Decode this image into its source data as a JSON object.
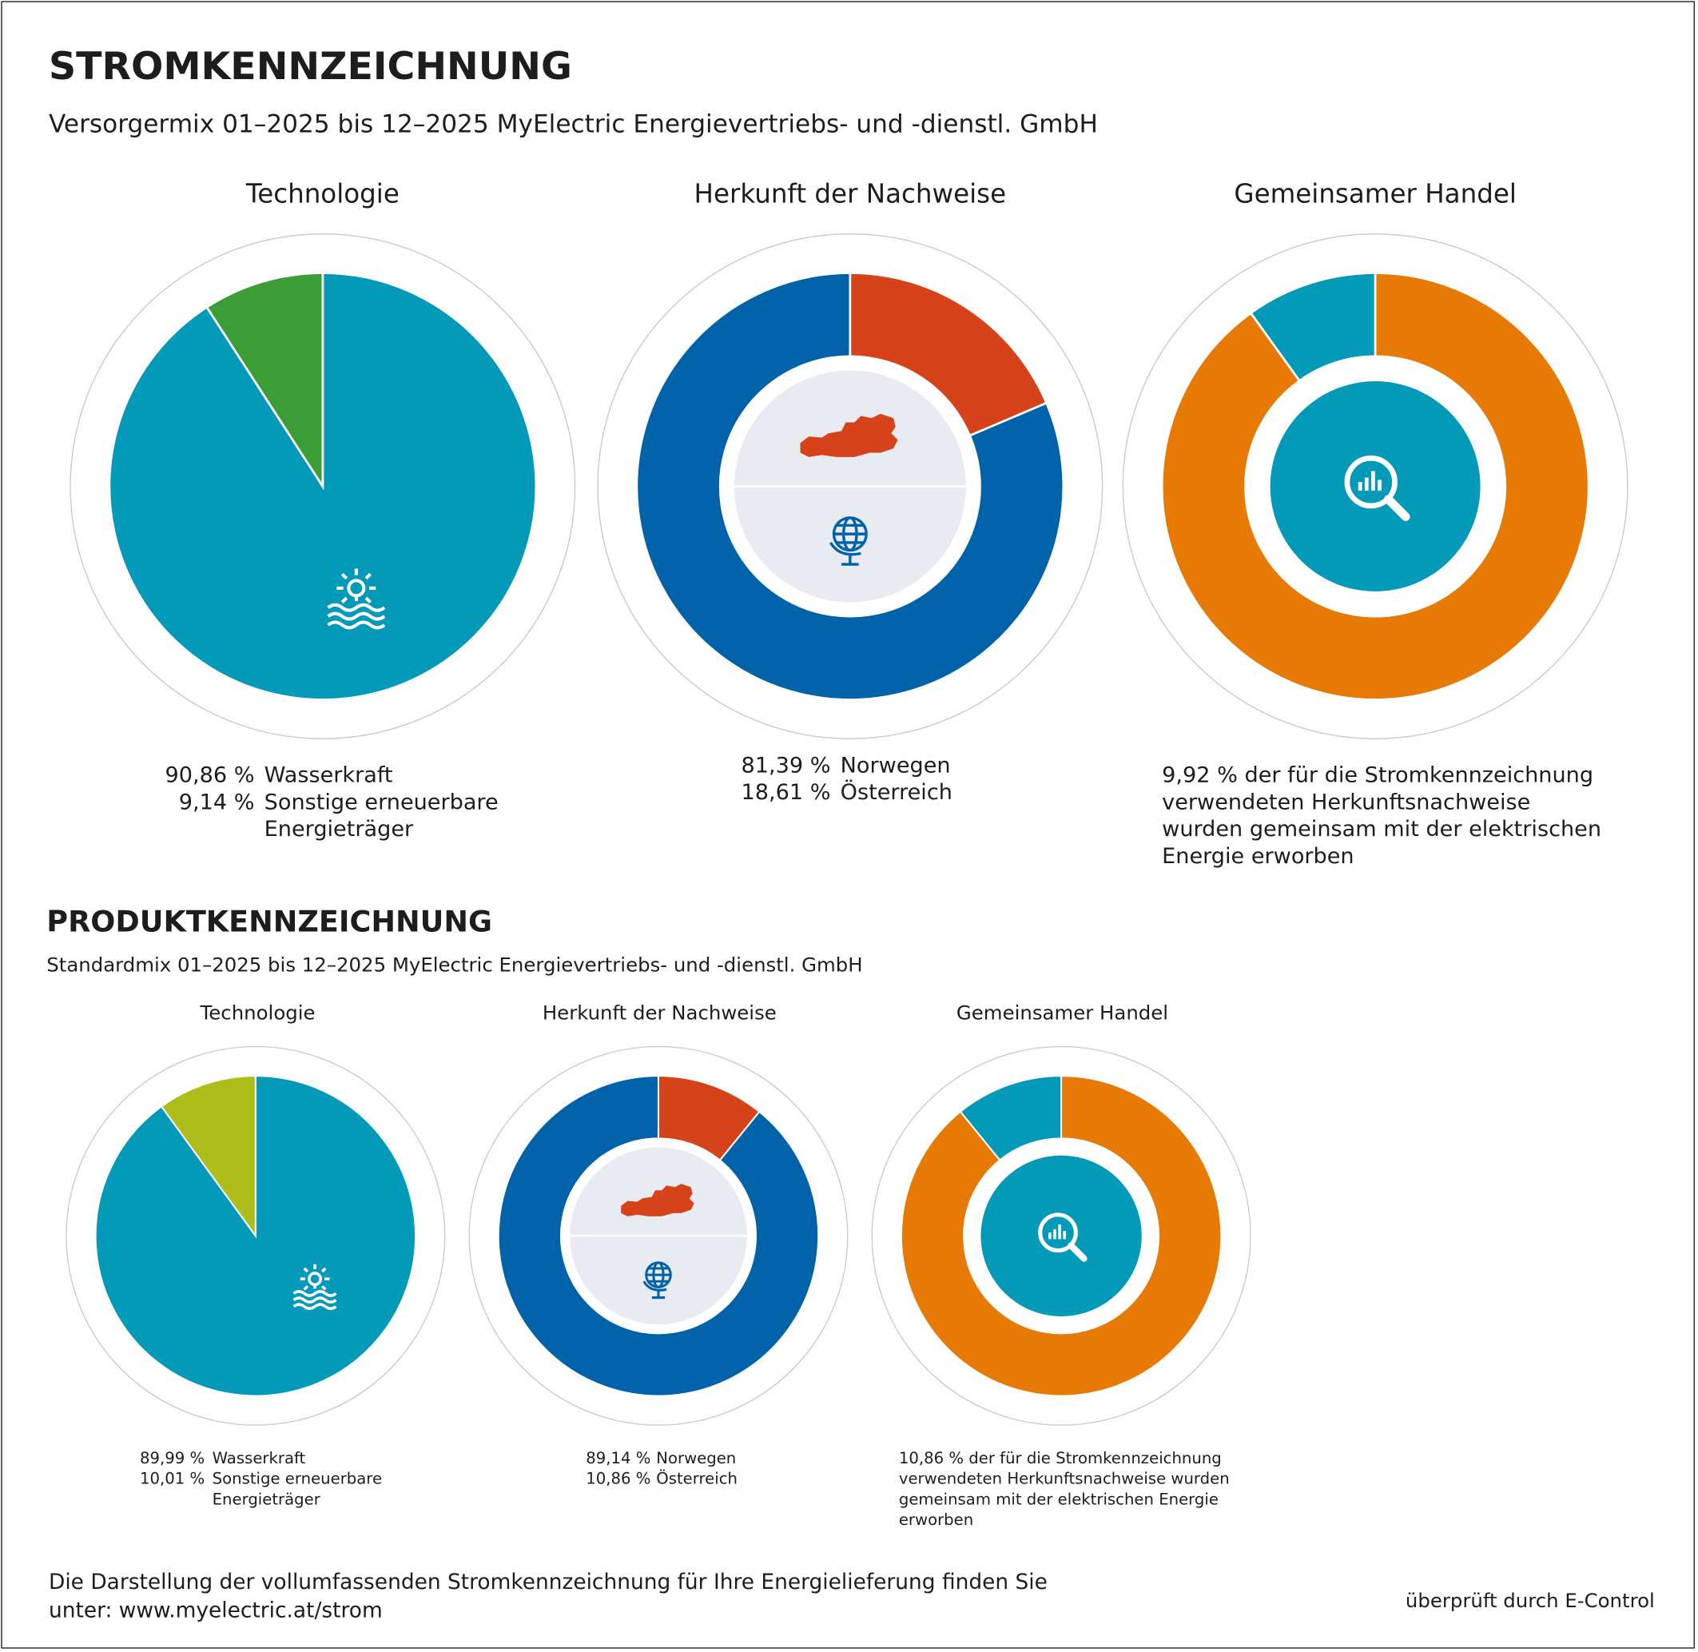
{
  "stromkennzeichnung": {
    "title": "STROMKENNZEICHNUNG",
    "subtitle": "Versorgermix 01–2025 bis 12–2025 MyElectric Energievertriebs- und -dienstl. GmbH"
  },
  "produktkennzeichnung": {
    "title": "PRODUKTKENNZEICHNUNG",
    "subtitle": "Standardmix 01–2025 bis 12–2025 MyElectric Energievertriebs- und -dienstl. GmbH"
  },
  "footer": {
    "note_lines": [
      "Die Darstellung der vollumfassenden Stromkennzeichnung für Ihre Energielieferung finden Sie",
      "unter: www.myelectric.at/strom"
    ],
    "verified": "überprüft durch E-Control"
  },
  "chart_data": [
    {
      "type": "pie",
      "title": "Technologie",
      "categories": [
        "Wasserkraft",
        "Sonstige erneuerbare Energieträger"
      ],
      "values": [
        90.86,
        9.14
      ],
      "value_labels": [
        "90,86 %",
        "9,14 %"
      ],
      "colors": [
        "#0399b9",
        "#3b9d36"
      ],
      "direction": "clockwise"
    },
    {
      "type": "donut",
      "title": "Herkunft der Nachweise",
      "categories": [
        "Norwegen",
        "Österreich"
      ],
      "values": [
        81.39,
        18.61
      ],
      "value_labels": [
        "81,39 %",
        "18,61 %"
      ],
      "colors": [
        "#0062a9",
        "#d6431a"
      ],
      "direction": "counterclockwise"
    },
    {
      "type": "donut",
      "title": "Gemeinsamer Handel",
      "categories": [
        "der für die Stromkennzeichnung verwendeten Herkunftsnachweise wurden gemeinsam mit der elektrischen Energie erworben",
        null
      ],
      "values": [
        9.92,
        90.08
      ],
      "value_labels": [
        "9,92 %",
        null
      ],
      "colors": [
        "#0399b9",
        "#e67a04"
      ],
      "direction": "counterclockwise"
    },
    {
      "type": "pie",
      "title": "Technologie",
      "categories": [
        "Wasserkraft",
        "Sonstige erneuerbare Energieträger"
      ],
      "values": [
        89.99,
        10.01
      ],
      "value_labels": [
        "89,99 %",
        "10,01 %"
      ],
      "colors": [
        "#0399b9",
        "#adbd19"
      ],
      "direction": "clockwise"
    },
    {
      "type": "donut",
      "title": "Herkunft der Nachweise",
      "categories": [
        "Norwegen",
        "Österreich"
      ],
      "values": [
        89.14,
        10.86
      ],
      "value_labels": [
        "89,14 %",
        "10,86 %"
      ],
      "colors": [
        "#0062a9",
        "#d6431a"
      ],
      "direction": "counterclockwise"
    },
    {
      "type": "donut",
      "title": "Gemeinsamer Handel",
      "categories": [
        "der für die Stromkennzeichnung verwendeten Herkunftsnachweise wurden gemeinsam mit der elektrischen Energie erworben",
        null
      ],
      "values": [
        10.86,
        89.14
      ],
      "value_labels": [
        "10,86 %",
        null
      ],
      "colors": [
        "#0399b9",
        "#e67a04"
      ],
      "direction": "counterclockwise"
    }
  ]
}
